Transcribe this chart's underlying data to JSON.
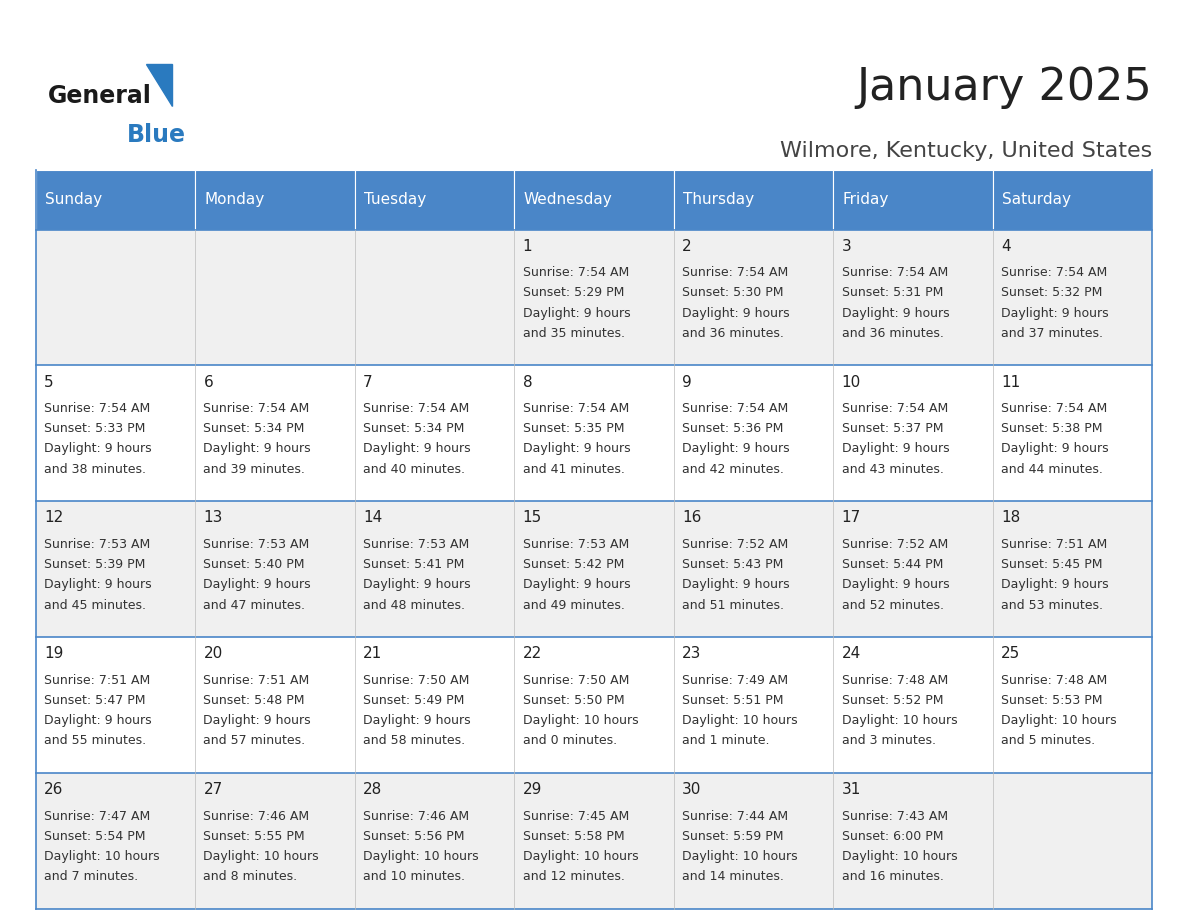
{
  "title": "January 2025",
  "subtitle": "Wilmore, Kentucky, United States",
  "header_color": "#4a86c8",
  "header_text_color": "#ffffff",
  "days_of_week": [
    "Sunday",
    "Monday",
    "Tuesday",
    "Wednesday",
    "Thursday",
    "Friday",
    "Saturday"
  ],
  "title_color": "#222222",
  "subtitle_color": "#444444",
  "line_color": "#4a86c8",
  "cell_bg_even": "#f0f0f0",
  "cell_bg_odd": "#ffffff",
  "day_num_color": "#222222",
  "info_color": "#333333",
  "calendar": [
    [
      null,
      null,
      null,
      {
        "day": 1,
        "sunrise": "7:54 AM",
        "sunset": "5:29 PM",
        "daylight": "9 hours and 35 minutes"
      },
      {
        "day": 2,
        "sunrise": "7:54 AM",
        "sunset": "5:30 PM",
        "daylight": "9 hours and 36 minutes"
      },
      {
        "day": 3,
        "sunrise": "7:54 AM",
        "sunset": "5:31 PM",
        "daylight": "9 hours and 36 minutes"
      },
      {
        "day": 4,
        "sunrise": "7:54 AM",
        "sunset": "5:32 PM",
        "daylight": "9 hours and 37 minutes"
      }
    ],
    [
      {
        "day": 5,
        "sunrise": "7:54 AM",
        "sunset": "5:33 PM",
        "daylight": "9 hours and 38 minutes"
      },
      {
        "day": 6,
        "sunrise": "7:54 AM",
        "sunset": "5:34 PM",
        "daylight": "9 hours and 39 minutes"
      },
      {
        "day": 7,
        "sunrise": "7:54 AM",
        "sunset": "5:34 PM",
        "daylight": "9 hours and 40 minutes"
      },
      {
        "day": 8,
        "sunrise": "7:54 AM",
        "sunset": "5:35 PM",
        "daylight": "9 hours and 41 minutes"
      },
      {
        "day": 9,
        "sunrise": "7:54 AM",
        "sunset": "5:36 PM",
        "daylight": "9 hours and 42 minutes"
      },
      {
        "day": 10,
        "sunrise": "7:54 AM",
        "sunset": "5:37 PM",
        "daylight": "9 hours and 43 minutes"
      },
      {
        "day": 11,
        "sunrise": "7:54 AM",
        "sunset": "5:38 PM",
        "daylight": "9 hours and 44 minutes"
      }
    ],
    [
      {
        "day": 12,
        "sunrise": "7:53 AM",
        "sunset": "5:39 PM",
        "daylight": "9 hours and 45 minutes"
      },
      {
        "day": 13,
        "sunrise": "7:53 AM",
        "sunset": "5:40 PM",
        "daylight": "9 hours and 47 minutes"
      },
      {
        "day": 14,
        "sunrise": "7:53 AM",
        "sunset": "5:41 PM",
        "daylight": "9 hours and 48 minutes"
      },
      {
        "day": 15,
        "sunrise": "7:53 AM",
        "sunset": "5:42 PM",
        "daylight": "9 hours and 49 minutes"
      },
      {
        "day": 16,
        "sunrise": "7:52 AM",
        "sunset": "5:43 PM",
        "daylight": "9 hours and 51 minutes"
      },
      {
        "day": 17,
        "sunrise": "7:52 AM",
        "sunset": "5:44 PM",
        "daylight": "9 hours and 52 minutes"
      },
      {
        "day": 18,
        "sunrise": "7:51 AM",
        "sunset": "5:45 PM",
        "daylight": "9 hours and 53 minutes"
      }
    ],
    [
      {
        "day": 19,
        "sunrise": "7:51 AM",
        "sunset": "5:47 PM",
        "daylight": "9 hours and 55 minutes"
      },
      {
        "day": 20,
        "sunrise": "7:51 AM",
        "sunset": "5:48 PM",
        "daylight": "9 hours and 57 minutes"
      },
      {
        "day": 21,
        "sunrise": "7:50 AM",
        "sunset": "5:49 PM",
        "daylight": "9 hours and 58 minutes"
      },
      {
        "day": 22,
        "sunrise": "7:50 AM",
        "sunset": "5:50 PM",
        "daylight": "10 hours and 0 minutes"
      },
      {
        "day": 23,
        "sunrise": "7:49 AM",
        "sunset": "5:51 PM",
        "daylight": "10 hours and 1 minute"
      },
      {
        "day": 24,
        "sunrise": "7:48 AM",
        "sunset": "5:52 PM",
        "daylight": "10 hours and 3 minutes"
      },
      {
        "day": 25,
        "sunrise": "7:48 AM",
        "sunset": "5:53 PM",
        "daylight": "10 hours and 5 minutes"
      }
    ],
    [
      {
        "day": 26,
        "sunrise": "7:47 AM",
        "sunset": "5:54 PM",
        "daylight": "10 hours and 7 minutes"
      },
      {
        "day": 27,
        "sunrise": "7:46 AM",
        "sunset": "5:55 PM",
        "daylight": "10 hours and 8 minutes"
      },
      {
        "day": 28,
        "sunrise": "7:46 AM",
        "sunset": "5:56 PM",
        "daylight": "10 hours and 10 minutes"
      },
      {
        "day": 29,
        "sunrise": "7:45 AM",
        "sunset": "5:58 PM",
        "daylight": "10 hours and 12 minutes"
      },
      {
        "day": 30,
        "sunrise": "7:44 AM",
        "sunset": "5:59 PM",
        "daylight": "10 hours and 14 minutes"
      },
      {
        "day": 31,
        "sunrise": "7:43 AM",
        "sunset": "6:00 PM",
        "daylight": "10 hours and 16 minutes"
      },
      null
    ]
  ],
  "logo_text_general": "General",
  "logo_text_blue": "Blue",
  "logo_triangle_color": "#2a7abf"
}
